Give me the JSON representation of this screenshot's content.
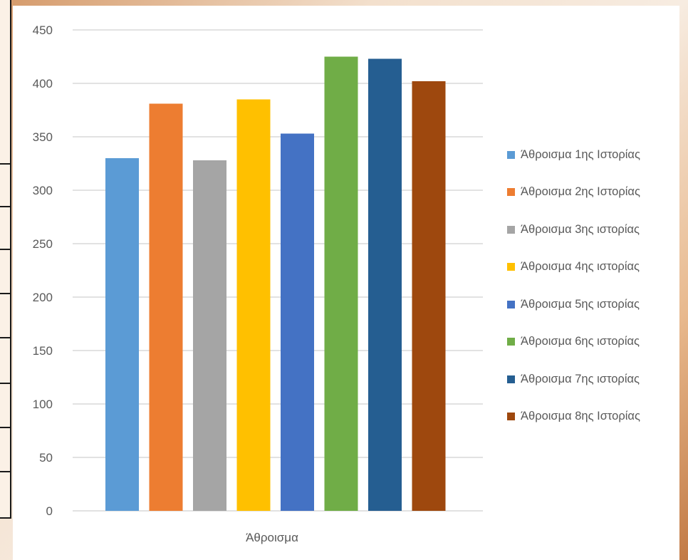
{
  "chart_data": {
    "type": "bar",
    "categories": [
      "Άθροισμα"
    ],
    "series": [
      {
        "name": "Άθροισμα 1ης Ιστορίας",
        "values": [
          330
        ],
        "color": "#5b9bd5"
      },
      {
        "name": "Άθροισμα 2ης Ιστορίας",
        "values": [
          381
        ],
        "color": "#ed7d31"
      },
      {
        "name": "Άθροισμα 3ης ιστορίας",
        "values": [
          328
        ],
        "color": "#a5a5a5"
      },
      {
        "name": "Άθροισμα 4ης ιστορίας",
        "values": [
          385
        ],
        "color": "#ffc000"
      },
      {
        "name": "Άθροισμα 5ης ιστορίας",
        "values": [
          353
        ],
        "color": "#4472c4"
      },
      {
        "name": "Άθροισμα 6ης ιστορίας",
        "values": [
          425
        ],
        "color": "#70ad47"
      },
      {
        "name": "Άθροισμα 7ης ιστορίας",
        "values": [
          423
        ],
        "color": "#255e91"
      },
      {
        "name": "Άθροισμα 8ης Ιστορίας",
        "values": [
          402
        ],
        "color": "#9e480e"
      }
    ],
    "y_ticks": [
      "0",
      "50",
      "100",
      "150",
      "200",
      "250",
      "300",
      "350",
      "400",
      "450"
    ],
    "ylim": [
      0,
      450
    ],
    "grid": true,
    "legend_position": "right",
    "title": "",
    "xlabel": "",
    "ylabel": ""
  }
}
